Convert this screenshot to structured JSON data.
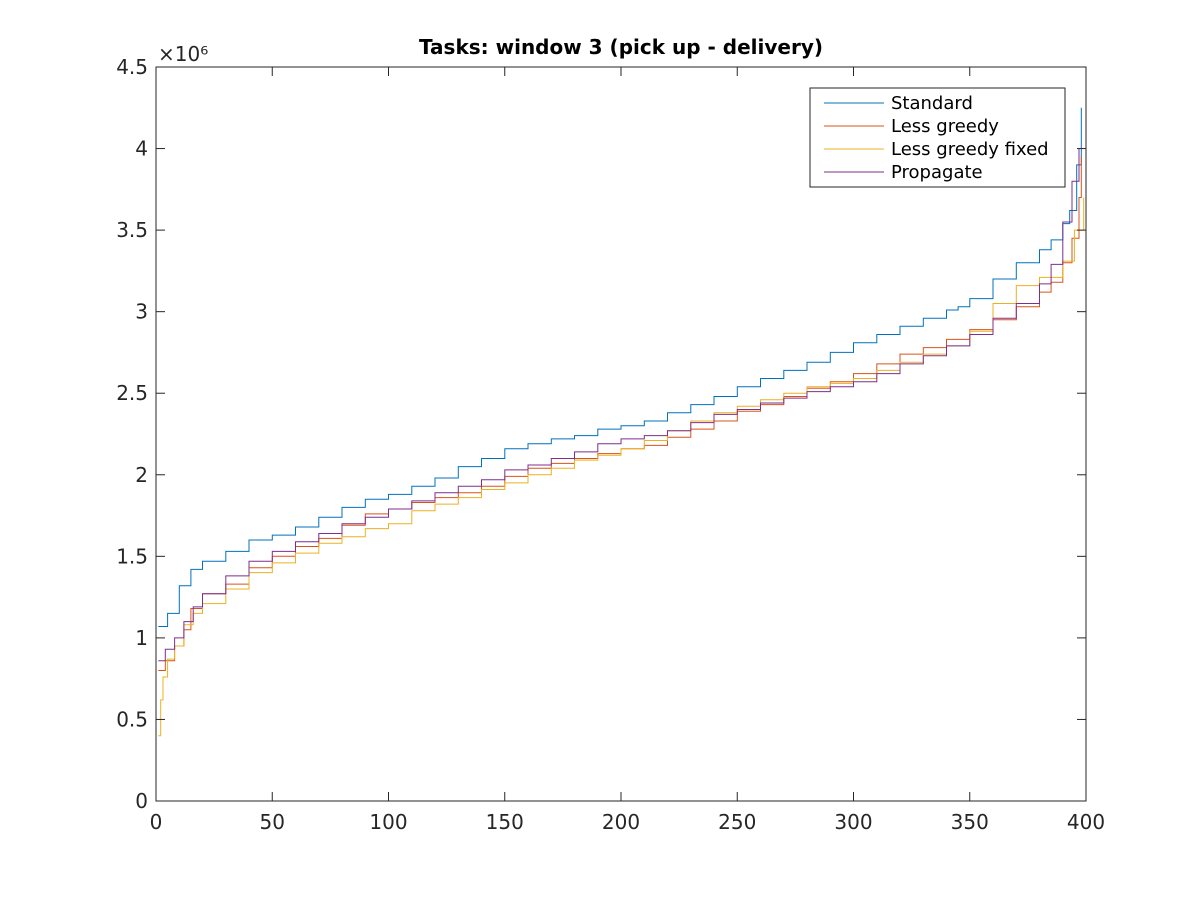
{
  "chart_data": {
    "type": "line",
    "title": "Tasks: window 3 (pick up - delivery)",
    "xlabel": "",
    "ylabel": "",
    "xlim": [
      0,
      400
    ],
    "ylim": [
      0,
      4500000
    ],
    "x_ticks": [
      0,
      50,
      100,
      150,
      200,
      250,
      300,
      350,
      400
    ],
    "x_tick_labels": [
      "0",
      "50",
      "100",
      "150",
      "200",
      "250",
      "300",
      "350",
      "400"
    ],
    "y_ticks": [
      0,
      500000,
      1000000,
      1500000,
      2000000,
      2500000,
      3000000,
      3500000,
      4000000,
      4500000
    ],
    "y_tick_labels": [
      "0",
      "0.5",
      "1",
      "1.5",
      "2",
      "2.5",
      "3",
      "3.5",
      "4",
      "4.5"
    ],
    "y_exponent_label": "×10⁶",
    "grid": false,
    "legend_position": "top-right",
    "series": [
      {
        "name": "Standard",
        "color": "#0072BD",
        "x": [
          1,
          5,
          10,
          15,
          20,
          30,
          40,
          50,
          60,
          70,
          80,
          90,
          100,
          110,
          120,
          130,
          140,
          150,
          160,
          170,
          180,
          190,
          200,
          210,
          220,
          230,
          240,
          250,
          260,
          270,
          280,
          290,
          300,
          310,
          320,
          330,
          340,
          345,
          350,
          360,
          370,
          380,
          385,
          390,
          393,
          396,
          398
        ],
        "y": [
          1070000,
          1150000,
          1320000,
          1420000,
          1470000,
          1530000,
          1600000,
          1630000,
          1680000,
          1740000,
          1800000,
          1850000,
          1880000,
          1930000,
          1980000,
          2050000,
          2100000,
          2160000,
          2190000,
          2220000,
          2240000,
          2280000,
          2300000,
          2330000,
          2380000,
          2430000,
          2480000,
          2540000,
          2590000,
          2640000,
          2690000,
          2750000,
          2810000,
          2860000,
          2910000,
          2960000,
          3010000,
          3030000,
          3080000,
          3200000,
          3300000,
          3380000,
          3440000,
          3540000,
          3620000,
          3900000,
          4250000
        ]
      },
      {
        "name": "Less greedy",
        "color": "#D95319",
        "x": [
          1,
          4,
          8,
          12,
          15,
          20,
          30,
          40,
          50,
          60,
          70,
          80,
          90,
          100,
          110,
          120,
          130,
          140,
          150,
          160,
          170,
          180,
          190,
          200,
          210,
          220,
          230,
          240,
          250,
          260,
          270,
          280,
          290,
          300,
          310,
          320,
          330,
          340,
          350,
          360,
          370,
          380,
          385,
          390,
          394,
          397,
          398
        ],
        "y": [
          800000,
          860000,
          950000,
          1050000,
          1180000,
          1270000,
          1330000,
          1430000,
          1500000,
          1560000,
          1610000,
          1690000,
          1760000,
          1790000,
          1830000,
          1860000,
          1890000,
          1930000,
          1990000,
          2040000,
          2070000,
          2100000,
          2130000,
          2160000,
          2180000,
          2230000,
          2280000,
          2330000,
          2390000,
          2430000,
          2480000,
          2530000,
          2570000,
          2620000,
          2680000,
          2740000,
          2780000,
          2830000,
          2890000,
          2950000,
          3030000,
          3120000,
          3180000,
          3300000,
          3450000,
          3700000,
          3950000
        ]
      },
      {
        "name": "Less greedy fixed",
        "color": "#EDB120",
        "x": [
          1,
          2,
          3,
          5,
          8,
          12,
          16,
          20,
          30,
          40,
          50,
          60,
          70,
          80,
          90,
          100,
          110,
          120,
          130,
          140,
          150,
          160,
          170,
          180,
          190,
          200,
          210,
          220,
          230,
          240,
          250,
          260,
          270,
          280,
          290,
          300,
          310,
          320,
          330,
          340,
          350,
          360,
          370,
          380,
          390,
          395,
          399
        ],
        "y": [
          400000,
          620000,
          760000,
          870000,
          950000,
          1080000,
          1150000,
          1210000,
          1300000,
          1400000,
          1460000,
          1520000,
          1580000,
          1620000,
          1670000,
          1700000,
          1780000,
          1820000,
          1860000,
          1910000,
          1950000,
          2000000,
          2040000,
          2090000,
          2120000,
          2160000,
          2210000,
          2270000,
          2330000,
          2380000,
          2420000,
          2460000,
          2500000,
          2540000,
          2560000,
          2590000,
          2640000,
          2690000,
          2740000,
          2790000,
          2880000,
          3050000,
          3160000,
          3210000,
          3310000,
          3500000,
          3700000
        ]
      },
      {
        "name": "Propagate",
        "color": "#7E2F8E",
        "x": [
          1,
          4,
          8,
          12,
          16,
          20,
          30,
          40,
          50,
          60,
          70,
          80,
          90,
          100,
          110,
          120,
          130,
          140,
          150,
          160,
          170,
          180,
          190,
          200,
          210,
          220,
          230,
          240,
          250,
          260,
          270,
          280,
          290,
          300,
          310,
          320,
          330,
          340,
          350,
          360,
          370,
          380,
          385,
          390,
          394,
          397
        ],
        "y": [
          860000,
          930000,
          1000000,
          1100000,
          1190000,
          1270000,
          1380000,
          1470000,
          1530000,
          1590000,
          1640000,
          1700000,
          1740000,
          1790000,
          1840000,
          1890000,
          1930000,
          1970000,
          2030000,
          2060000,
          2100000,
          2140000,
          2190000,
          2220000,
          2240000,
          2270000,
          2320000,
          2370000,
          2400000,
          2440000,
          2470000,
          2510000,
          2540000,
          2570000,
          2620000,
          2680000,
          2730000,
          2790000,
          2860000,
          2960000,
          3050000,
          3170000,
          3290000,
          3550000,
          3800000,
          4000000
        ]
      }
    ]
  }
}
